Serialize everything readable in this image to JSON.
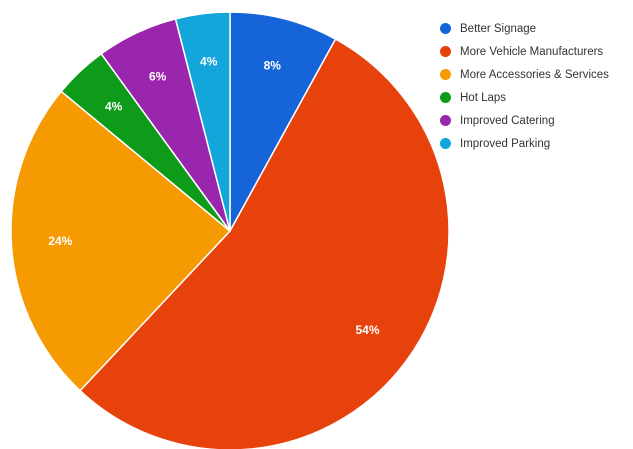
{
  "chart_data": {
    "type": "pie",
    "title": "",
    "categories": [
      "Better Signage",
      "More Vehicle Manufacturers",
      "More Accessories & Services",
      "Hot Laps",
      "Improved Catering",
      "Improved Parking"
    ],
    "values": [
      8,
      54,
      24,
      4,
      6,
      4
    ],
    "labels": [
      "8%",
      "54%",
      "24%",
      "4%",
      "6%",
      "4%"
    ],
    "colors": [
      "#1565D8",
      "#E8420C",
      "#F59A00",
      "#0E9B1A",
      "#9B26AE",
      "#12A6DA"
    ],
    "legend_position": "right"
  }
}
